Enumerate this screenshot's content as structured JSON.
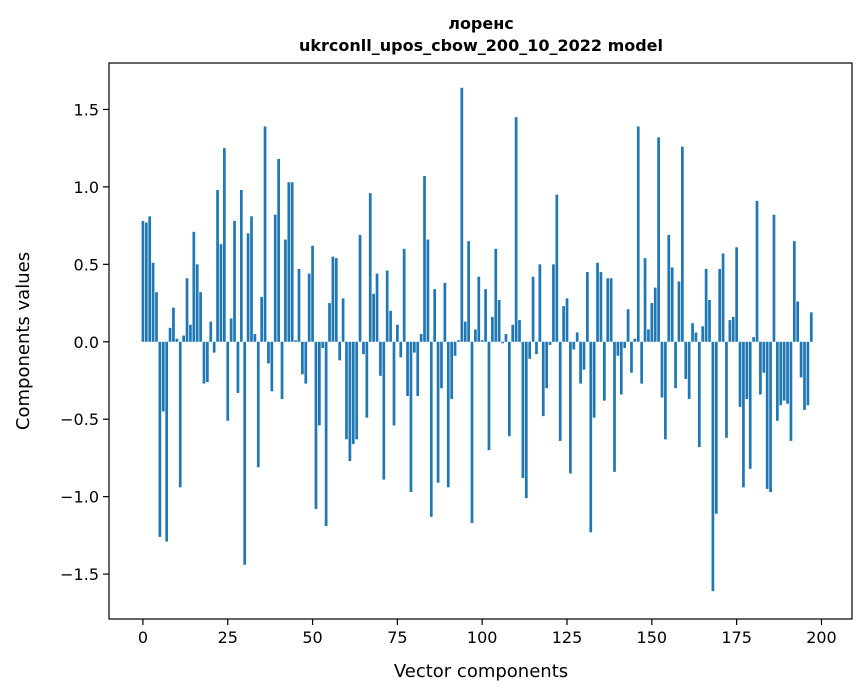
{
  "chart_data": {
    "type": "bar",
    "title": "лоренс",
    "subtitle": "ukrconll_upos_cbow_200_10_2022 model",
    "xlabel": "Vector components",
    "ylabel": "Components values",
    "xlim": [
      -10,
      209
    ],
    "ylim": [
      -1.79,
      1.8
    ],
    "xticks": [
      0,
      25,
      50,
      75,
      100,
      125,
      150,
      175,
      200
    ],
    "xtick_labels": [
      "0",
      "25",
      "50",
      "75",
      "100",
      "125",
      "150",
      "175",
      "200"
    ],
    "yticks": [
      1.5,
      1.0,
      0.5,
      0.0,
      -0.5,
      -1.0,
      -1.5
    ],
    "ytick_labels": [
      "1.5",
      "1.0",
      "0.5",
      "0.0",
      "−0.5",
      "−1.0",
      "−1.5"
    ],
    "grid": false,
    "bar_color": "#1f77b4",
    "values": [
      0.78,
      0.77,
      0.81,
      0.51,
      0.32,
      -1.26,
      -0.45,
      -1.29,
      0.09,
      0.22,
      0.02,
      -0.94,
      0.04,
      0.41,
      0.11,
      0.71,
      0.5,
      0.32,
      -0.27,
      -0.26,
      0.13,
      -0.07,
      0.98,
      0.63,
      1.25,
      -0.51,
      0.15,
      0.78,
      -0.33,
      0.98,
      -1.44,
      0.7,
      0.81,
      0.05,
      -0.81,
      0.29,
      1.39,
      -0.14,
      -0.32,
      0.82,
      1.18,
      -0.37,
      0.66,
      1.03,
      1.03,
      0.01,
      0.47,
      -0.21,
      -0.27,
      0.44,
      0.62,
      -1.08,
      -0.54,
      -0.04,
      -1.19,
      0.25,
      0.55,
      0.54,
      -0.12,
      0.28,
      -0.63,
      -0.77,
      -0.66,
      -0.63,
      0.69,
      -0.08,
      -0.49,
      0.96,
      0.31,
      0.44,
      -0.22,
      -0.89,
      0.46,
      0.2,
      -0.54,
      0.11,
      -0.1,
      0.6,
      -0.35,
      -0.97,
      -0.07,
      -0.35,
      0.05,
      1.07,
      0.66,
      -1.13,
      0.34,
      -0.91,
      -0.3,
      0.38,
      -0.94,
      -0.37,
      -0.09,
      0.01,
      1.64,
      0.13,
      0.65,
      -1.17,
      0.08,
      0.42,
      0.01,
      0.34,
      -0.7,
      0.16,
      0.6,
      0.27,
      -0.01,
      0.05,
      -0.61,
      0.11,
      1.45,
      0.14,
      -0.88,
      -1.01,
      -0.11,
      0.42,
      -0.08,
      0.5,
      -0.48,
      -0.3,
      -0.02,
      0.5,
      0.95,
      -0.64,
      0.23,
      0.28,
      -0.85,
      -0.05,
      0.06,
      -0.27,
      -0.18,
      0.45,
      -1.23,
      -0.49,
      0.51,
      0.45,
      -0.38,
      0.41,
      0.41,
      -0.84,
      -0.09,
      -0.34,
      -0.04,
      0.21,
      -0.2,
      0.02,
      1.39,
      -0.27,
      0.54,
      0.08,
      0.25,
      0.35,
      1.32,
      -0.36,
      -0.63,
      0.69,
      0.48,
      -0.3,
      0.39,
      1.26,
      -0.24,
      -0.37,
      0.12,
      0.06,
      -0.68,
      0.1,
      0.47,
      0.27,
      -1.61,
      -1.11,
      0.47,
      0.57,
      -0.62,
      0.14,
      0.16,
      0.61,
      -0.42,
      -0.94,
      -0.37,
      -0.82,
      0.03,
      0.91,
      -0.34,
      -0.2,
      -0.95,
      -0.97,
      0.82,
      -0.51,
      -0.41,
      -0.38,
      -0.4,
      -0.64,
      0.65,
      0.26,
      -0.23,
      -0.44,
      -0.41,
      0.19
    ]
  }
}
